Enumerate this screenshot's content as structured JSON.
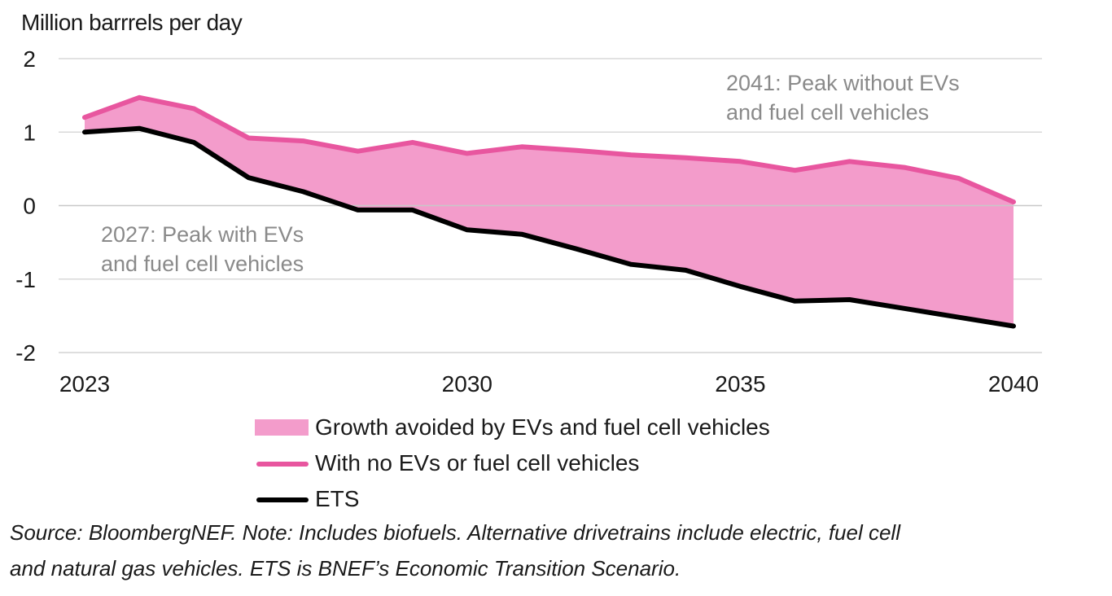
{
  "chart_data": {
    "type": "area",
    "ylabel": "Million barrrels per day",
    "ylim": [
      -2,
      2
    ],
    "y_ticks": [
      "2",
      "1",
      "0",
      "-1",
      "-2"
    ],
    "x": [
      2023,
      2024,
      2025,
      2026,
      2027,
      2028,
      2029,
      2030,
      2031,
      2032,
      2033,
      2034,
      2035,
      2036,
      2037,
      2038,
      2039,
      2040
    ],
    "x_tick_labels": [
      "2023",
      "2030",
      "2035",
      "2040"
    ],
    "series": [
      {
        "name": "With no EVs or fuel cell vehicles",
        "kind": "line",
        "color": "#e8569f",
        "values": [
          1.2,
          1.47,
          1.32,
          0.92,
          0.88,
          0.74,
          0.86,
          0.71,
          0.8,
          0.75,
          0.69,
          0.65,
          0.6,
          0.48,
          0.6,
          0.52,
          0.37,
          0.05
        ]
      },
      {
        "name": "ETS",
        "kind": "line",
        "color": "#000000",
        "values": [
          1.0,
          1.05,
          0.86,
          0.38,
          0.19,
          -0.06,
          -0.06,
          -0.33,
          -0.39,
          -0.59,
          -0.8,
          -0.88,
          -1.1,
          -1.3,
          -1.28,
          -1.4,
          -1.52,
          -1.64
        ]
      },
      {
        "name": "Growth avoided by EVs and fuel cell vehicles",
        "kind": "area",
        "color": "#f39ccb",
        "between": [
          "With no EVs or fuel cell vehicles",
          "ETS"
        ]
      }
    ],
    "annotations": [
      {
        "lines": [
          "2041: Peak without EVs",
          "and fuel cell vehicles"
        ]
      },
      {
        "lines": [
          "2027: Peak with EVs",
          "and fuel cell vehicles"
        ]
      }
    ],
    "grid": true,
    "legend_position": "bottom-center"
  },
  "legend": [
    {
      "label": "Growth avoided by EVs and fuel cell vehicles",
      "kind": "area",
      "color": "#f39ccb"
    },
    {
      "label": "With no EVs or fuel cell vehicles",
      "kind": "line",
      "color": "#e8569f"
    },
    {
      "label": "ETS",
      "kind": "line",
      "color": "#000000"
    }
  ],
  "source": {
    "line1": "Source: BloombergNEF. Note: Includes biofuels. Alternative drivetrains include electric, fuel cell",
    "line2": "and natural gas vehicles. ETS is BNEF’s Economic Transition Scenario."
  }
}
